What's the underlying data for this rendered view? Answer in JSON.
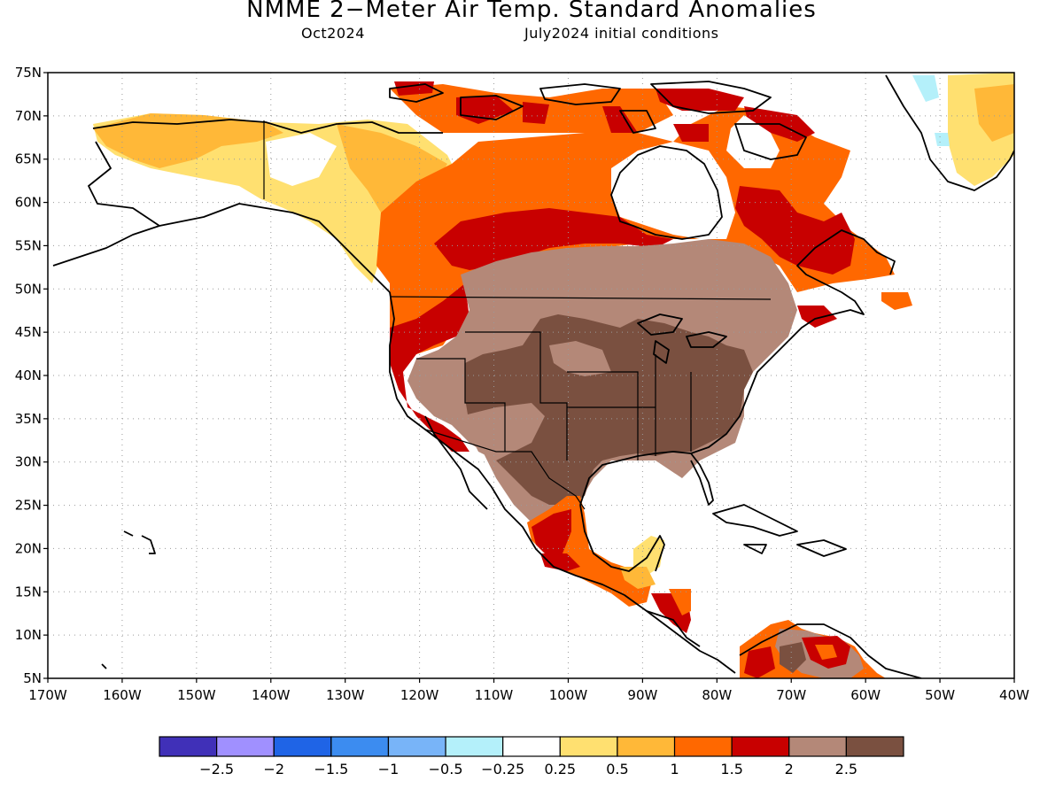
{
  "header": {
    "title": "NMME 2−Meter Air Temp. Standard Anomalies",
    "month": "Oct2024",
    "init": "July2024 initial conditions"
  },
  "map": {
    "lat_labels": [
      "75N",
      "70N",
      "65N",
      "60N",
      "55N",
      "50N",
      "45N",
      "40N",
      "35N",
      "30N",
      "25N",
      "20N",
      "15N",
      "10N",
      "5N"
    ],
    "lon_labels": [
      "170W",
      "160W",
      "150W",
      "140W",
      "130W",
      "120W",
      "110W",
      "100W",
      "90W",
      "80W",
      "70W",
      "60W",
      "50W",
      "40W"
    ],
    "lat_range": [
      5,
      75
    ],
    "lon_range": [
      -170,
      -40
    ],
    "grid": "dotted"
  },
  "anomaly_regions": [
    {
      "name": "Alaska / Yukon",
      "level": "0.25 to 0.5",
      "color": "#ffe070"
    },
    {
      "name": "Western Canada",
      "level": "1 to 1.5",
      "color": "#ff6800"
    },
    {
      "name": "Hudson Bay rim",
      "level": "1.5 to 2",
      "color": "#c80000"
    },
    {
      "name": "Northern Plains / Upper Midwest",
      "level": "2 to 2.5",
      "color": "#b48878"
    },
    {
      "name": "Southern Plains / Mississippi Valley",
      "level": "> 2.5",
      "color": "#7a5040"
    },
    {
      "name": "Pacific Coast",
      "level": "1.5 to 2",
      "color": "#c80000"
    },
    {
      "name": "Labrador / Quebec",
      "level": "1.5 to 2",
      "color": "#c80000"
    },
    {
      "name": "Yucatan",
      "level": "0.25 to 0.5",
      "color": "#ffe070"
    },
    {
      "name": "Venezuela",
      "level": "2 to 2.5",
      "color": "#b48878"
    }
  ],
  "colorbar": {
    "colors": [
      "#4030b8",
      "#a090ff",
      "#1f64e6",
      "#3c8cf0",
      "#78b4f8",
      "#b4f0fa",
      "#ffffff",
      "#ffe070",
      "#ffb838",
      "#ff6800",
      "#c80000",
      "#b48878",
      "#7a5040"
    ],
    "labels": [
      "−2.5",
      "−2",
      "−1.5",
      "−1",
      "−0.5",
      "−0.25",
      "0.25",
      "0.5",
      "1",
      "1.5",
      "2",
      "2.5"
    ]
  }
}
